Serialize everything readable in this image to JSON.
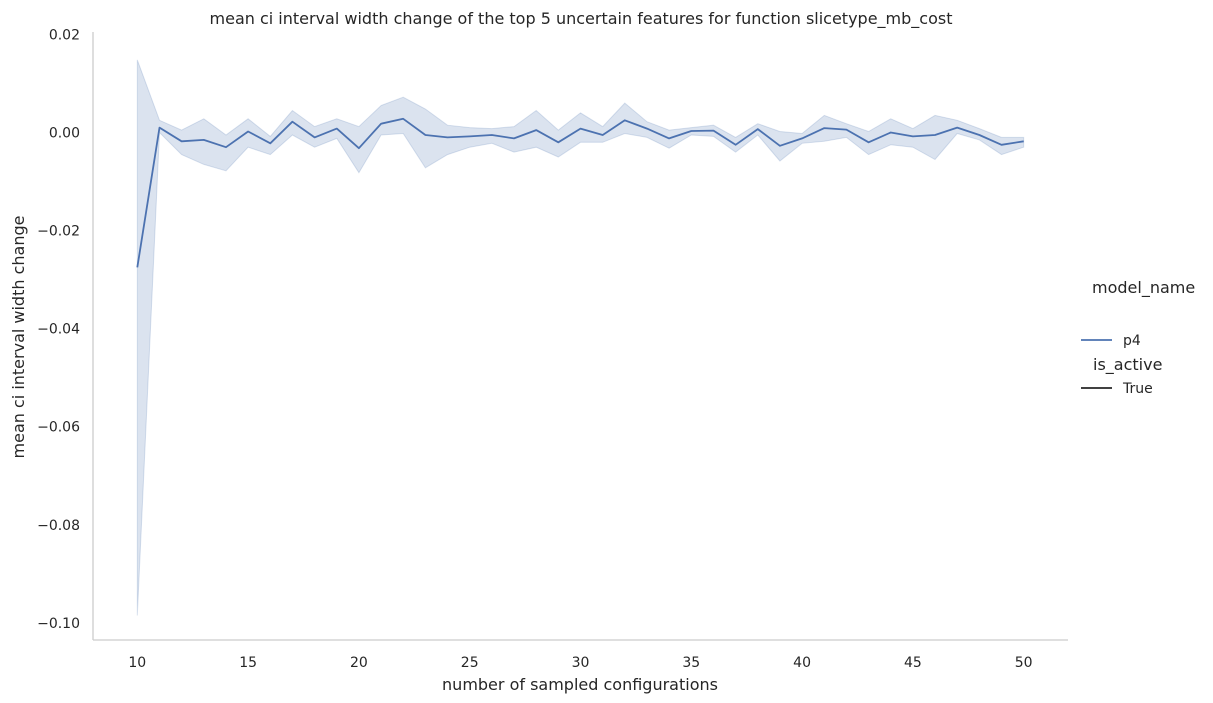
{
  "chart_data": {
    "type": "line",
    "title": "mean ci interval width change of the top 5 uncertain features for function slicetype_mb_cost",
    "xlabel": "number of sampled configurations",
    "ylabel": "mean ci interval width change",
    "xlim": [
      8,
      52
    ],
    "ylim": [
      -0.1035,
      0.0205
    ],
    "x_ticks": [
      10,
      15,
      20,
      25,
      30,
      35,
      40,
      45,
      50
    ],
    "y_ticks": [
      0.02,
      0.0,
      -0.02,
      -0.04,
      -0.06,
      -0.08,
      -0.1
    ],
    "y_tick_labels": [
      "0.02",
      "0.00",
      "−0.02",
      "−0.04",
      "−0.06",
      "−0.08",
      "−0.10"
    ],
    "grid": false,
    "legend_position": "right",
    "legend": {
      "hue_title": "model_name",
      "hue_entries": [
        {
          "label": "p4",
          "color": "#4c72b0"
        }
      ],
      "style_title": "is_active",
      "style_entries": [
        {
          "label": "True",
          "color": "#262626"
        }
      ]
    },
    "series": [
      {
        "name": "p4",
        "color": "#4c72b0",
        "x": [
          10,
          11,
          12,
          13,
          14,
          15,
          16,
          17,
          18,
          19,
          20,
          21,
          22,
          23,
          24,
          25,
          26,
          27,
          28,
          29,
          30,
          31,
          32,
          33,
          34,
          35,
          36,
          37,
          38,
          39,
          40,
          41,
          42,
          43,
          44,
          45,
          46,
          47,
          48,
          49,
          50
        ],
        "y": [
          -0.0275,
          0.001,
          -0.0018,
          -0.0015,
          -0.003,
          0.0002,
          -0.0022,
          0.0022,
          -0.001,
          0.0008,
          -0.0032,
          0.0018,
          0.0028,
          -0.0005,
          -0.001,
          -0.0008,
          -0.0005,
          -0.0012,
          0.0005,
          -0.002,
          0.0008,
          -0.0005,
          0.0025,
          0.0008,
          -0.0012,
          0.0003,
          0.0004,
          -0.0025,
          0.0007,
          -0.0027,
          -0.0012,
          0.0009,
          0.0006,
          -0.002,
          0.0,
          -0.0008,
          -0.0005,
          0.001,
          -0.0005,
          -0.0025,
          -0.0018
        ],
        "ci_low": [
          -0.0985,
          0.0,
          -0.0045,
          -0.0065,
          -0.0078,
          -0.003,
          -0.0045,
          -0.0005,
          -0.003,
          -0.0012,
          -0.0082,
          -0.0005,
          -0.0002,
          -0.0072,
          -0.0045,
          -0.003,
          -0.0022,
          -0.004,
          -0.003,
          -0.005,
          -0.002,
          -0.002,
          -0.0002,
          -0.001,
          -0.0032,
          -0.0005,
          -0.0008,
          -0.004,
          -0.0005,
          -0.0058,
          -0.0022,
          -0.0018,
          -0.001,
          -0.0045,
          -0.0025,
          -0.003,
          -0.0055,
          -0.0002,
          -0.0015,
          -0.0045,
          -0.003
        ],
        "ci_high": [
          0.0148,
          0.0025,
          0.0005,
          0.0028,
          -0.0005,
          0.0028,
          -0.0008,
          0.0045,
          0.0012,
          0.0028,
          0.0012,
          0.0055,
          0.0072,
          0.0048,
          0.0015,
          0.001,
          0.0008,
          0.0012,
          0.0045,
          0.0005,
          0.004,
          0.0012,
          0.006,
          0.0022,
          0.0005,
          0.001,
          0.0015,
          -0.001,
          0.0018,
          0.0002,
          -0.0002,
          0.0035,
          0.0018,
          0.0002,
          0.0028,
          0.0008,
          0.0035,
          0.0025,
          0.0008,
          -0.001,
          -0.001
        ]
      }
    ]
  }
}
